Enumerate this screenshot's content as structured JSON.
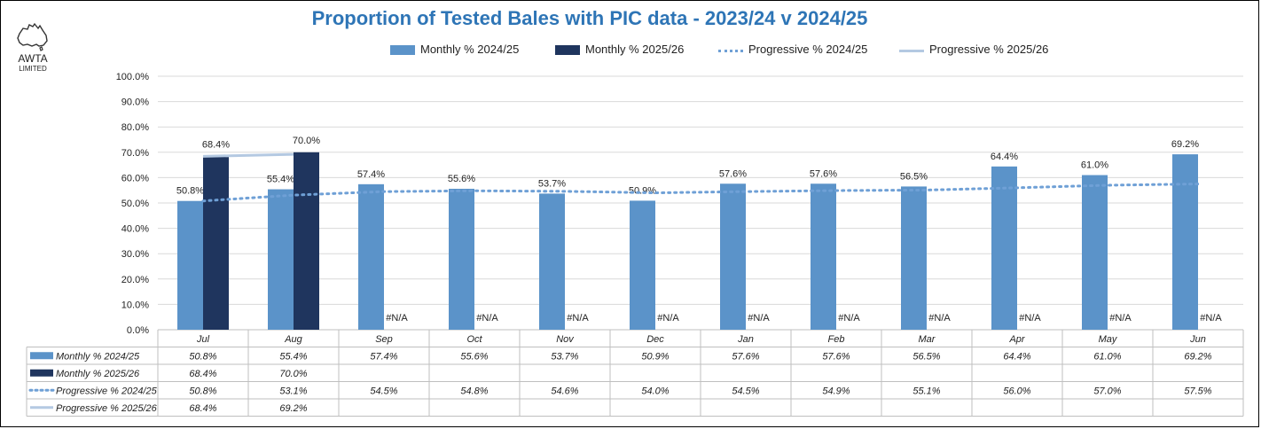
{
  "header": {
    "title": "Proportion of Tested Bales with PIC data - 2023/24 v 2024/25",
    "logo_text": "AWTA",
    "logo_subtext": "LIMITED",
    "logo_icon": "australia-map-icon"
  },
  "legend": {
    "items": [
      {
        "label": "Monthly % 2024/25",
        "kind": "bar"
      },
      {
        "label": "Monthly % 2025/26",
        "kind": "bar"
      },
      {
        "label": "Progressive % 2024/25",
        "kind": "dotted-line"
      },
      {
        "label": "Progressive % 2025/26",
        "kind": "line"
      }
    ],
    "placement": "top"
  },
  "chart_data": {
    "type": "bar",
    "title": "Proportion of Tested Bales with PIC data - 2023/24 v 2024/25",
    "categories": [
      "Jul",
      "Aug",
      "Sep",
      "Oct",
      "Nov",
      "Dec",
      "Jan",
      "Feb",
      "Mar",
      "Apr",
      "May",
      "Jun"
    ],
    "ylim": [
      0,
      100
    ],
    "yticks": [
      "0.0%",
      "10.0%",
      "20.0%",
      "30.0%",
      "40.0%",
      "50.0%",
      "60.0%",
      "70.0%",
      "80.0%",
      "90.0%",
      "100.0%"
    ],
    "grid": true,
    "series": [
      {
        "name": "Monthly % 2024/25",
        "kind": "bar",
        "color": "#5b93c9",
        "values": [
          50.8,
          55.4,
          57.4,
          55.6,
          53.7,
          50.9,
          57.6,
          57.6,
          56.5,
          64.4,
          61.0,
          69.2
        ],
        "labels": [
          "50.8%",
          "55.4%",
          "57.4%",
          "55.6%",
          "53.7%",
          "50.9%",
          "57.6%",
          "57.6%",
          "56.5%",
          "64.4%",
          "61.0%",
          "69.2%"
        ]
      },
      {
        "name": "Monthly % 2025/26",
        "kind": "bar",
        "color": "#1f355e",
        "values": [
          68.4,
          70.0,
          null,
          null,
          null,
          null,
          null,
          null,
          null,
          null,
          null,
          null
        ],
        "labels": [
          "68.4%",
          "70.0%",
          "#N/A",
          "#N/A",
          "#N/A",
          "#N/A",
          "#N/A",
          "#N/A",
          "#N/A",
          "#N/A",
          "#N/A",
          "#N/A"
        ]
      },
      {
        "name": "Progressive % 2024/25",
        "kind": "dotted-line",
        "color": "#6fa0d6",
        "values": [
          50.8,
          53.1,
          54.5,
          54.8,
          54.6,
          54.0,
          54.5,
          54.9,
          55.1,
          56.0,
          57.0,
          57.5
        ]
      },
      {
        "name": "Progressive % 2025/26",
        "kind": "line",
        "color": "#b4c9e2",
        "values": [
          68.4,
          69.2,
          null,
          null,
          null,
          null,
          null,
          null,
          null,
          null,
          null,
          null
        ]
      }
    ]
  },
  "table": {
    "rows": [
      {
        "label": "Monthly % 2024/25",
        "cells": [
          "50.8%",
          "55.4%",
          "57.4%",
          "55.6%",
          "53.7%",
          "50.9%",
          "57.6%",
          "57.6%",
          "56.5%",
          "64.4%",
          "61.0%",
          "69.2%"
        ]
      },
      {
        "label": "Monthly % 2025/26",
        "cells": [
          "68.4%",
          "70.0%",
          "",
          "",
          "",
          "",
          "",
          "",
          "",
          "",
          "",
          ""
        ]
      },
      {
        "label": "Progressive % 2024/25",
        "cells": [
          "50.8%",
          "53.1%",
          "54.5%",
          "54.8%",
          "54.6%",
          "54.0%",
          "54.5%",
          "54.9%",
          "55.1%",
          "56.0%",
          "57.0%",
          "57.5%"
        ]
      },
      {
        "label": "Progressive % 2025/26",
        "cells": [
          "68.4%",
          "69.2%",
          "",
          "",
          "",
          "",
          "",
          "",
          "",
          "",
          "",
          ""
        ]
      }
    ]
  }
}
